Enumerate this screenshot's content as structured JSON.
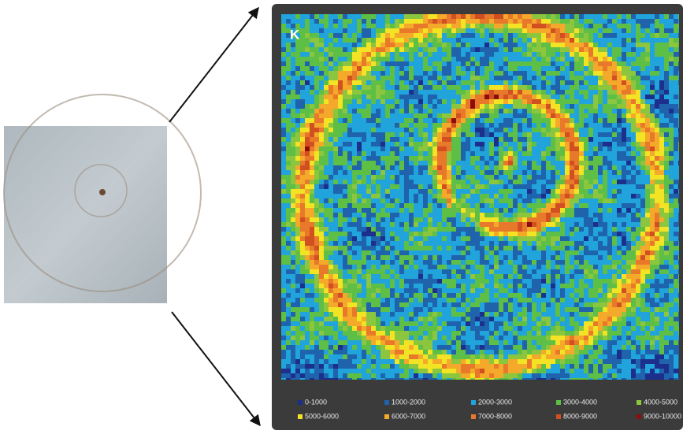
{
  "panel_label": "K",
  "legend": [
    {
      "name": "0-1000",
      "color": "#1c2f8c"
    },
    {
      "name": "1000-2000",
      "color": "#1f63ad"
    },
    {
      "name": "2000-3000",
      "color": "#21a3dc"
    },
    {
      "name": "3000-4000",
      "color": "#5dbf45"
    },
    {
      "name": "4000-5000",
      "color": "#8cc63e"
    },
    {
      "name": "5000-6000",
      "color": "#f2e424"
    },
    {
      "name": "6000-7000",
      "color": "#f4a92a"
    },
    {
      "name": "7000-8000",
      "color": "#e8782a"
    },
    {
      "name": "8000-9000",
      "color": "#d24f22"
    },
    {
      "name": "9000-10000",
      "color": "#8c0d0d"
    }
  ]
}
